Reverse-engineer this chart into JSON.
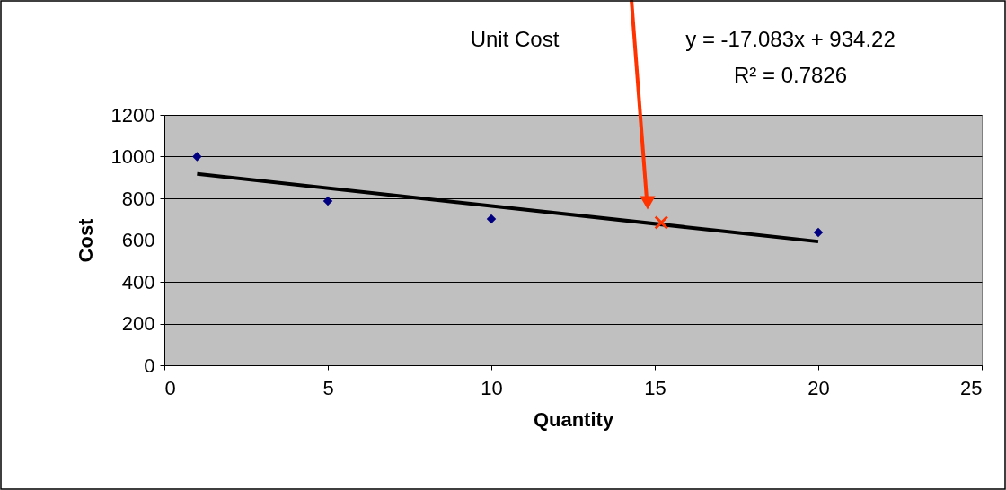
{
  "chart_data": {
    "type": "scatter",
    "title": "Unit Cost",
    "xlabel": "Quantity",
    "ylabel": "Cost",
    "xlim": [
      0,
      25
    ],
    "xticks": [
      0,
      5,
      10,
      15,
      20,
      25
    ],
    "ylim": [
      0,
      1200
    ],
    "yticks": [
      0,
      200,
      400,
      600,
      800,
      1000,
      1200
    ],
    "grid": "y",
    "series": [
      {
        "marker": "diamond",
        "color": "#000080",
        "x": [
          1,
          5,
          10,
          20
        ],
        "values": [
          1000,
          787,
          701,
          637
        ]
      },
      {
        "type": "line",
        "color": "#000000",
        "x": [
          1,
          20
        ],
        "values": [
          917,
          593
        ]
      },
      {
        "marker": "cross",
        "color": "#ff3300",
        "x": [
          15.2
        ],
        "values": [
          684
        ]
      }
    ],
    "annotations": [
      "y = -17.083x + 934.22",
      "R² = 0.7826"
    ]
  }
}
